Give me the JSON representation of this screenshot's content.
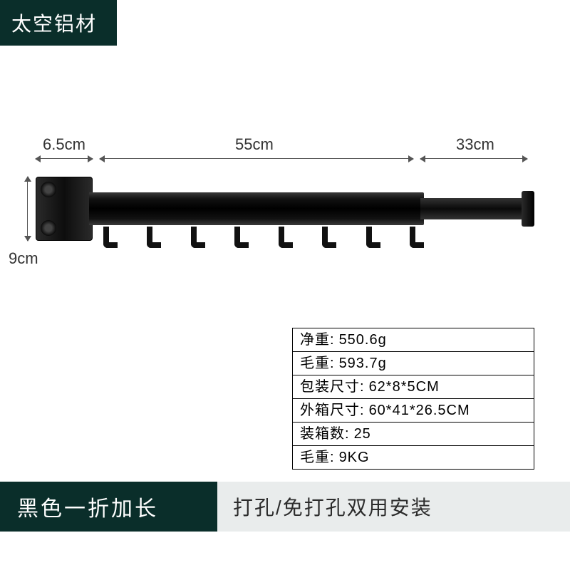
{
  "material_badge": "太空铝材",
  "dimensions": {
    "mount_width": "6.5cm",
    "main_length": "55cm",
    "ext_length": "33cm",
    "height": "9cm"
  },
  "diagram": {
    "hook_count": 8,
    "colors": {
      "product_body": "#111111",
      "highlight": "#3a3a3a",
      "dim_line": "#555555",
      "dim_text": "#333333"
    }
  },
  "specs": [
    {
      "key": "净重:",
      "val": "550.6g"
    },
    {
      "key": "毛重:",
      "val": "593.7g"
    },
    {
      "key": "包装尺寸:",
      "val": "62*8*5CM"
    },
    {
      "key": "外箱尺寸:",
      "val": "60*41*26.5CM"
    },
    {
      "key": "装箱数:",
      "val": "25"
    },
    {
      "key": "毛重:",
      "val": "9KG"
    }
  ],
  "bottom": {
    "title": "黑色一折加长",
    "subtitle": "打孔/免打孔双用安装"
  },
  "palette": {
    "badge_bg": "#0a2e2a",
    "badge_text": "#ffffff",
    "light_bar_bg": "#e9ecec",
    "light_bar_text": "#2c2c2c",
    "page_bg": "#ffffff",
    "table_border": "#000000"
  }
}
